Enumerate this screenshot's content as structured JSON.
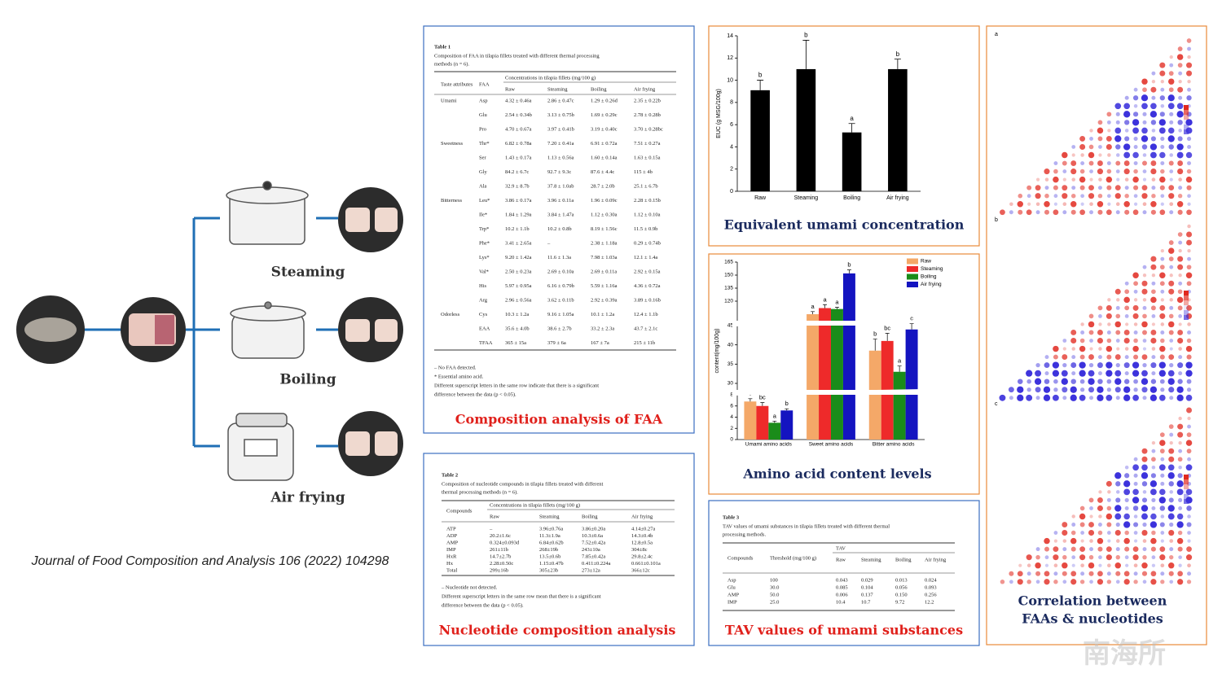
{
  "chart_data": [
    {
      "type": "bar",
      "title": "Equivalent umami concentration",
      "y_label": "EUC (g MSG/100g)",
      "categories": [
        "Raw",
        "Steaming",
        "Boiling",
        "Air frying"
      ],
      "values": [
        9.1,
        11,
        5.3,
        11
      ],
      "errors": [
        0.9,
        2.6,
        0.8,
        0.9
      ],
      "annotations": [
        "b",
        "b",
        "a",
        "b"
      ],
      "color": "#000000",
      "ylim": [
        0,
        14
      ],
      "yticks": [
        0,
        2,
        4,
        6,
        8,
        10,
        12,
        14
      ]
    },
    {
      "type": "grouped_bar",
      "title": "Amino acid content levels",
      "y_label": "content(mg/100g)",
      "categories": [
        "Umami amino acids",
        "Sweet amino acids",
        "Bitter amino acids"
      ],
      "series": [
        {
          "name": "Raw",
          "color": "#f4a868",
          "values": [
            6.8,
            105,
            38.5
          ],
          "errors": [
            0.5,
            3,
            3
          ],
          "annotations": [
            "c",
            "a",
            "b"
          ]
        },
        {
          "name": "Steaming",
          "color": "#ee2a2a",
          "values": [
            6,
            112,
            41
          ],
          "errors": [
            0.6,
            4,
            2
          ],
          "annotations": [
            "bc",
            "a",
            "bc"
          ]
        },
        {
          "name": "Boiling",
          "color": "#1a8c1a",
          "values": [
            3,
            111,
            33
          ],
          "errors": [
            0.3,
            2,
            1.5
          ],
          "annotations": [
            "a",
            "a",
            "a"
          ]
        },
        {
          "name": "Air frying",
          "color": "#1414c0",
          "values": [
            5.2,
            152,
            44
          ],
          "errors": [
            0.3,
            4,
            1.5
          ],
          "annotations": [
            "b",
            "b",
            "c"
          ]
        }
      ],
      "ylim": [
        0,
        165
      ],
      "yticks": [
        0,
        2,
        4,
        6,
        8,
        30,
        35,
        40,
        45,
        120,
        135,
        150,
        165
      ],
      "axis_break": true,
      "legend": "top-right"
    }
  ],
  "methods": {
    "steaming": "Steaming",
    "boiling": "Boiling",
    "air_frying": "Air frying"
  },
  "citation": "Journal of Food Composition and Analysis 106 (2022) 104298",
  "table1": {
    "label": "Table 1",
    "caption": [
      "Composition of FAA in tilapia fillets treated with different thermal processing",
      "methods (n = 6)."
    ],
    "header": [
      "Taste attributes",
      "FAA"
    ],
    "group_header": "Concentrations in tilapia fillets (mg/100 g)",
    "columns": [
      "Raw",
      "Steaming",
      "Boiling",
      "Air frying"
    ],
    "rows": [
      {
        "group": "Umami",
        "cells": [
          "Asp",
          "4.32 ± 0.46a",
          "2.86 ± 0.47c",
          "1.29 ± 0.26d",
          "2.35 ± 0.22b"
        ]
      },
      {
        "cells": [
          "Glu",
          "2.54 ± 0.34b",
          "3.13 ± 0.75b",
          "1.69 ± 0.29c",
          "2.78 ± 0.28b"
        ]
      },
      {
        "cells": [
          "Pro",
          "4.70 ± 0.67a",
          "3.97 ± 0.41b",
          "3.19 ± 0.40c",
          "3.70 ± 0.28bc"
        ]
      },
      {
        "group": "Sweetness",
        "cells": [
          "Thr*",
          "6.82 ± 0.78a",
          "7.20 ± 0.41a",
          "6.91 ± 0.72a",
          "7.51 ± 0.27a"
        ]
      },
      {
        "cells": [
          "Ser",
          "1.43 ± 0.17a",
          "1.13 ± 0.56a",
          "1.60 ± 0.14a",
          "1.63 ± 0.15a"
        ]
      },
      {
        "cells": [
          "Gly",
          "84.2 ± 6.7c",
          "92.7 ± 9.3c",
          "87.6 ± 4.4c",
          "115 ± 4b"
        ]
      },
      {
        "cells": [
          "Ala",
          "32.9 ± 8.7b",
          "37.8 ± 1.0ab",
          "28.7 ± 2.0b",
          "25.1 ± 6.7b"
        ]
      },
      {
        "group": "Bitterness",
        "cells": [
          "Leu*",
          "3.86 ± 0.17a",
          "3.96 ± 0.11a",
          "1.96 ± 0.09c",
          "2.28 ± 0.15b"
        ]
      },
      {
        "cells": [
          "Ile*",
          "1.84 ± 1.29a",
          "3.84 ± 1.47a",
          "1.12 ± 0.30a",
          "1.12 ± 0.10a"
        ]
      },
      {
        "cells": [
          "Trp*",
          "10.2 ± 1.1b",
          "10.2 ± 0.8b",
          "8.19 ± 1.56c",
          "11.5 ± 0.9b"
        ]
      },
      {
        "cells": [
          "Phe*",
          "3.41 ± 2.65a",
          "–",
          "2.38 ± 1.18a",
          "0.29 ± 0.74b"
        ]
      },
      {
        "cells": [
          "Lys*",
          "9.20 ± 1.42a",
          "11.6 ± 1.3a",
          "7.98 ± 1.03a",
          "12.1 ± 1.4a"
        ]
      },
      {
        "cells": [
          "Val*",
          "2.50 ± 0.23a",
          "2.69 ± 0.10a",
          "2.69 ± 0.11a",
          "2.92 ± 0.15a"
        ]
      },
      {
        "cells": [
          "His",
          "5.97 ± 0.95a",
          "6.16 ± 0.79b",
          "5.59 ± 1.16a",
          "4.36 ± 0.72a"
        ]
      },
      {
        "cells": [
          "Arg",
          "2.96 ± 0.56a",
          "3.62 ± 0.11b",
          "2.92 ± 0.39a",
          "3.89 ± 0.16b"
        ]
      },
      {
        "group": "Odorless",
        "cells": [
          "Cys",
          "10.3 ± 1.2a",
          "9.16 ± 1.05a",
          "10.1 ± 1.2a",
          "12.4 ± 1.1b"
        ]
      },
      {
        "cells": [
          "EAA",
          "35.6 ± 4.0b",
          "38.6 ± 2.7b",
          "33.2 ± 2.3a",
          "43.7 ± 2.1c"
        ]
      },
      {
        "cells": [
          "TFAA",
          "365 ± 15a",
          "379 ± 6a",
          "167 ± 7a",
          "215 ± 11b"
        ]
      }
    ],
    "notes": [
      "– No FAA detected.",
      "* Essential amino acid.",
      "Different superscript letters in the same row indicate that there is a significant",
      "difference between the data (p < 0.05)."
    ],
    "title": "Composition analysis of FAA"
  },
  "table2": {
    "label": "Table 2",
    "caption": [
      "Composition of nucleotide compounds in tilapia fillets treated with different",
      "thermal processing methods (n = 6)."
    ],
    "header": "Compounds",
    "group_header": "Concentrations in tilapia fillets (mg/100 g)",
    "columns": [
      "Raw",
      "Steaming",
      "Boiling",
      "Air frying"
    ],
    "rows": [
      [
        "ATP",
        "–",
        "3.96±0.76a",
        "3.86±0.20a",
        "4.14±0.27a"
      ],
      [
        "ADP",
        "20.2±1.6c",
        "11.3±1.9a",
        "10.3±0.6a",
        "14.3±0.4b"
      ],
      [
        "AMP",
        "0.324±0.093d",
        "6.84±0.62b",
        "7.52±0.42a",
        "12.8±0.5a"
      ],
      [
        "IMP",
        "261±11b",
        "268±19b",
        "243±10a",
        "304±8c"
      ],
      [
        "HxR",
        "14.7±2.7b",
        "13.5±0.6b",
        "7.85±0.42a",
        "29.8±2.4c"
      ],
      [
        "Hx",
        "2.28±0.50c",
        "1.15±0.47b",
        "0.411±0.224a",
        "0.661±0.101a"
      ],
      [
        "Total",
        "299±16b",
        "305±23b",
        "273±12a",
        "366±12c"
      ]
    ],
    "notes": [
      "– Nucleotide not detected.",
      "Different superscript letters in the same row mean that there is a significant",
      "difference between the data (p < 0.05)."
    ],
    "title": "Nucleotide composition analysis"
  },
  "table3": {
    "label": "Table 3",
    "caption": [
      "TAV values of umami substances in tilapia fillets treated with different thermal",
      "processing methods."
    ],
    "header": [
      "Compounds",
      "Threshold (mg/100 g)"
    ],
    "group_header": "TAV",
    "columns": [
      "Raw",
      "Steaming",
      "Boiling",
      "Air frying"
    ],
    "rows": [
      [
        "Asp",
        "100",
        "0.043",
        "0.029",
        "0.013",
        "0.024"
      ],
      [
        "Glu",
        "30.0",
        "0.085",
        "0.104",
        "0.056",
        "0.093"
      ],
      [
        "AMP",
        "50.0",
        "0.006",
        "0.137",
        "0.150",
        "0.256"
      ],
      [
        "IMP",
        "25.0",
        "10.4",
        "10.7",
        "9.72",
        "12.2"
      ]
    ],
    "title": "TAV values of umami substances"
  },
  "correlation": {
    "panels": [
      "a",
      "b",
      "c"
    ],
    "title": [
      "Correlation between",
      "FAAs & nucleotides"
    ]
  },
  "watermark": "南海所"
}
